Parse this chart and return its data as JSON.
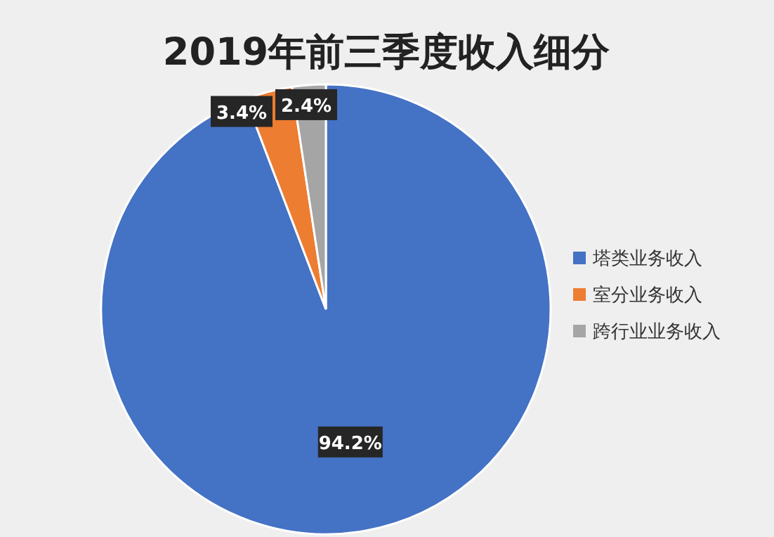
{
  "chart_data": {
    "type": "pie",
    "title": "2019年前三季度收入细分",
    "categories": [
      "塔类业务收入",
      "室分业务收入",
      "跨行业业务收入"
    ],
    "values": [
      94.2,
      3.4,
      2.4
    ],
    "colors": [
      "#4472c4",
      "#ed7d31",
      "#a5a5a5"
    ],
    "value_labels": [
      "94.2%",
      "3.4%",
      "2.4%"
    ],
    "legend": "right"
  }
}
